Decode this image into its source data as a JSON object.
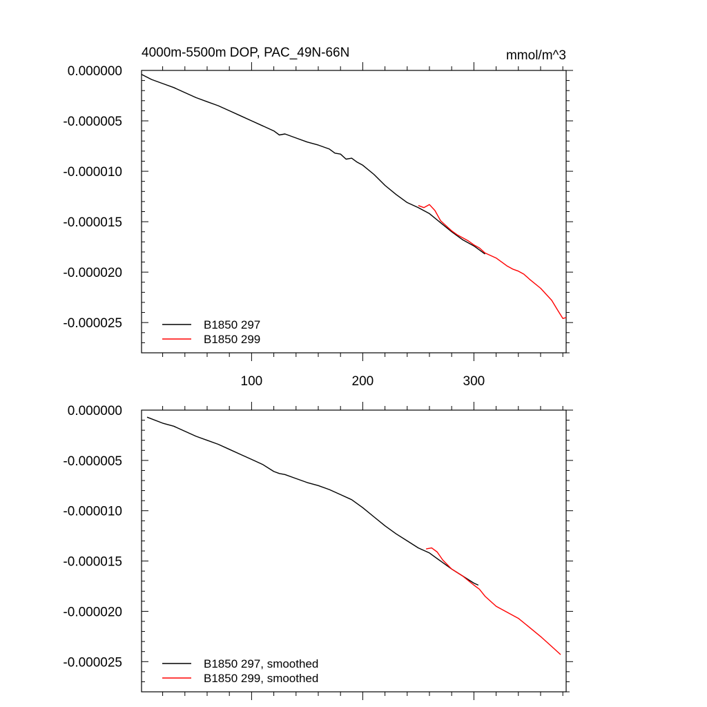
{
  "header": {
    "title": "4000m-5500m DOP, PAC_49N-66N",
    "units": "mmol/m^3"
  },
  "chart_data": [
    {
      "type": "line",
      "panel": "top",
      "title": "4000m-5500m DOP, PAC_49N-66N",
      "units_label": "mmol/m^3",
      "xlim": [
        1,
        383
      ],
      "ylim": [
        -2.8e-05,
        0.0
      ],
      "xticks": [
        100,
        200,
        300
      ],
      "xtick_labels": [
        "100",
        "200",
        "300"
      ],
      "yticks": [
        0.0,
        -5e-06,
        -1e-05,
        -1.5e-05,
        -2e-05,
        -2.5e-05
      ],
      "ytick_labels": [
        "0.000000",
        "-0.000005",
        "-0.000010",
        "-0.000015",
        "-0.000020",
        "-0.000025"
      ],
      "legend_position": "bottom-left",
      "grid": false,
      "series": [
        {
          "name": "B1850 297",
          "color": "#000000",
          "points": [
            [
              1,
              -4e-07
            ],
            [
              10,
              -9e-07
            ],
            [
              20,
              -1.3e-06
            ],
            [
              30,
              -1.7e-06
            ],
            [
              40,
              -2.2e-06
            ],
            [
              50,
              -2.7e-06
            ],
            [
              60,
              -3.1e-06
            ],
            [
              70,
              -3.5e-06
            ],
            [
              80,
              -4e-06
            ],
            [
              90,
              -4.5e-06
            ],
            [
              100,
              -5e-06
            ],
            [
              110,
              -5.5e-06
            ],
            [
              120,
              -6e-06
            ],
            [
              125,
              -6.4e-06
            ],
            [
              130,
              -6.3e-06
            ],
            [
              140,
              -6.7e-06
            ],
            [
              150,
              -7.1e-06
            ],
            [
              160,
              -7.4e-06
            ],
            [
              170,
              -7.8e-06
            ],
            [
              175,
              -8.2e-06
            ],
            [
              180,
              -8.3e-06
            ],
            [
              185,
              -8.8e-06
            ],
            [
              190,
              -8.7e-06
            ],
            [
              195,
              -9.1e-06
            ],
            [
              200,
              -9.4e-06
            ],
            [
              210,
              -1.03e-05
            ],
            [
              220,
              -1.14e-05
            ],
            [
              230,
              -1.23e-05
            ],
            [
              240,
              -1.31e-05
            ],
            [
              250,
              -1.36e-05
            ],
            [
              260,
              -1.42e-05
            ],
            [
              270,
              -1.51e-05
            ],
            [
              280,
              -1.6e-05
            ],
            [
              290,
              -1.68e-05
            ],
            [
              300,
              -1.74e-05
            ],
            [
              310,
              -1.82e-05
            ]
          ]
        },
        {
          "name": "B1850 299",
          "color": "#ff0000",
          "points": [
            [
              250,
              -1.34e-05
            ],
            [
              255,
              -1.36e-05
            ],
            [
              260,
              -1.33e-05
            ],
            [
              265,
              -1.39e-05
            ],
            [
              270,
              -1.49e-05
            ],
            [
              275,
              -1.54e-05
            ],
            [
              280,
              -1.59e-05
            ],
            [
              285,
              -1.63e-05
            ],
            [
              290,
              -1.66e-05
            ],
            [
              295,
              -1.69e-05
            ],
            [
              300,
              -1.73e-05
            ],
            [
              305,
              -1.76e-05
            ],
            [
              310,
              -1.81e-05
            ],
            [
              320,
              -1.86e-05
            ],
            [
              330,
              -1.94e-05
            ],
            [
              335,
              -1.97e-05
            ],
            [
              340,
              -1.99e-05
            ],
            [
              345,
              -2.02e-05
            ],
            [
              350,
              -2.07e-05
            ],
            [
              360,
              -2.16e-05
            ],
            [
              370,
              -2.28e-05
            ],
            [
              375,
              -2.37e-05
            ],
            [
              380,
              -2.46e-05
            ],
            [
              383,
              -2.45e-05
            ]
          ]
        }
      ]
    },
    {
      "type": "line",
      "panel": "bottom",
      "xlim": [
        1,
        383
      ],
      "ylim": [
        -2.8e-05,
        0.0
      ],
      "yticks": [
        0.0,
        -5e-06,
        -1e-05,
        -1.5e-05,
        -2e-05,
        -2.5e-05
      ],
      "ytick_labels": [
        "0.000000",
        "-0.000005",
        "-0.000010",
        "-0.000015",
        "-0.000020",
        "-0.000025"
      ],
      "legend_position": "bottom-left",
      "grid": false,
      "series": [
        {
          "name": "B1850 297, smoothed",
          "color": "#000000",
          "points": [
            [
              6,
              -7e-07
            ],
            [
              20,
              -1.3e-06
            ],
            [
              30,
              -1.6e-06
            ],
            [
              40,
              -2.1e-06
            ],
            [
              50,
              -2.6e-06
            ],
            [
              60,
              -3e-06
            ],
            [
              70,
              -3.4e-06
            ],
            [
              80,
              -3.9e-06
            ],
            [
              90,
              -4.4e-06
            ],
            [
              100,
              -4.9e-06
            ],
            [
              110,
              -5.4e-06
            ],
            [
              120,
              -6.1e-06
            ],
            [
              125,
              -6.3e-06
            ],
            [
              130,
              -6.4e-06
            ],
            [
              140,
              -6.8e-06
            ],
            [
              150,
              -7.2e-06
            ],
            [
              160,
              -7.5e-06
            ],
            [
              170,
              -7.9e-06
            ],
            [
              180,
              -8.4e-06
            ],
            [
              190,
              -8.9e-06
            ],
            [
              200,
              -9.7e-06
            ],
            [
              210,
              -1.06e-05
            ],
            [
              220,
              -1.15e-05
            ],
            [
              230,
              -1.23e-05
            ],
            [
              240,
              -1.3e-05
            ],
            [
              250,
              -1.37e-05
            ],
            [
              260,
              -1.42e-05
            ],
            [
              270,
              -1.5e-05
            ],
            [
              280,
              -1.58e-05
            ],
            [
              290,
              -1.65e-05
            ],
            [
              300,
              -1.72e-05
            ],
            [
              304,
              -1.74e-05
            ]
          ]
        },
        {
          "name": "B1850 299, smoothed",
          "color": "#ff0000",
          "points": [
            [
              257,
              -1.38e-05
            ],
            [
              262,
              -1.37e-05
            ],
            [
              267,
              -1.41e-05
            ],
            [
              272,
              -1.49e-05
            ],
            [
              280,
              -1.58e-05
            ],
            [
              290,
              -1.65e-05
            ],
            [
              300,
              -1.74e-05
            ],
            [
              305,
              -1.78e-05
            ],
            [
              310,
              -1.85e-05
            ],
            [
              320,
              -1.95e-05
            ],
            [
              330,
              -2.01e-05
            ],
            [
              340,
              -2.07e-05
            ],
            [
              350,
              -2.16e-05
            ],
            [
              360,
              -2.25e-05
            ],
            [
              370,
              -2.35e-05
            ],
            [
              378,
              -2.43e-05
            ]
          ]
        }
      ]
    }
  ]
}
